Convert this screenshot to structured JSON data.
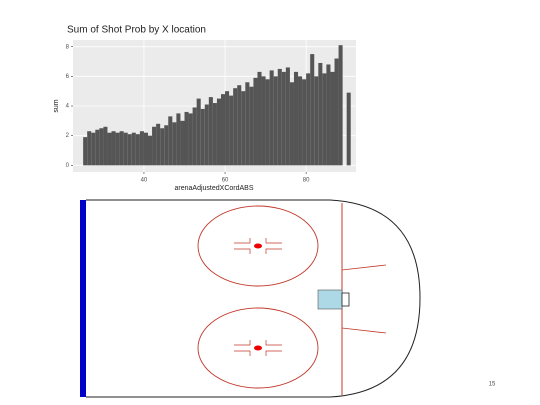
{
  "chart_data": {
    "type": "histogram",
    "title": "Sum of Shot Prob by X location",
    "x_label": "arenaAdjustedXCordABS",
    "y_label": "sum",
    "bins": [
      25,
      26,
      27,
      28,
      29,
      30,
      31,
      32,
      33,
      34,
      35,
      36,
      37,
      38,
      39,
      40,
      41,
      42,
      43,
      44,
      45,
      46,
      47,
      48,
      49,
      50,
      51,
      52,
      53,
      54,
      55,
      56,
      57,
      58,
      59,
      60,
      61,
      62,
      63,
      64,
      65,
      66,
      67,
      68,
      69,
      70,
      71,
      72,
      73,
      74,
      75,
      76,
      77,
      78,
      79,
      80,
      81,
      82,
      83,
      84,
      85,
      86,
      87,
      88,
      89,
      90,
      91
    ],
    "values": [
      1.9,
      2.3,
      2.2,
      2.4,
      2.5,
      2.6,
      2.2,
      2.3,
      2.2,
      2.3,
      2.2,
      2.1,
      2.2,
      2.1,
      2.3,
      2.2,
      2.0,
      2.6,
      2.8,
      2.5,
      2.7,
      3.3,
      2.9,
      3.5,
      3.0,
      3.6,
      3.5,
      3.9,
      4.5,
      3.8,
      4.1,
      4.6,
      4.2,
      4.5,
      4.8,
      5.0,
      4.7,
      5.2,
      5.4,
      5.0,
      5.6,
      5.3,
      5.9,
      6.3,
      6.0,
      5.8,
      6.4,
      6.0,
      6.5,
      6.3,
      6.6,
      5.6,
      6.3,
      6.0,
      5.8,
      6.2,
      7.5,
      6.0,
      6.9,
      6.2,
      6.8,
      6.3,
      7.2,
      8.1,
      0,
      4.9
    ],
    "color": "#555555",
    "xlim": [
      22.5,
      92.3
    ],
    "xticks": [
      40,
      60,
      80
    ],
    "ylim": [
      -0.45,
      8.45
    ],
    "yticks": [
      0,
      2,
      4,
      6,
      8
    ],
    "grid": true,
    "panel_color": "#ebebeb"
  },
  "slide_number": "15"
}
